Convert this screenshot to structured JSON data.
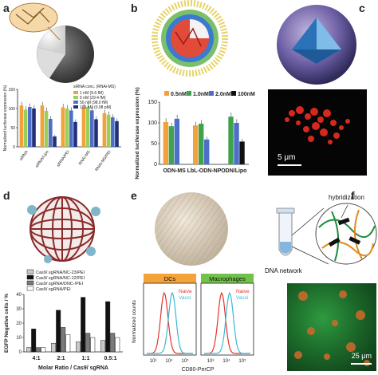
{
  "panel_labels": {
    "a": "a",
    "b": "b",
    "c": "c",
    "d": "d",
    "e": "e",
    "f": "f"
  },
  "colors": {
    "orange": "#f2a23a",
    "green": "#3fa34d",
    "blue": "#3f5fb5",
    "navy": "#22307a",
    "red": "#e8332a",
    "cyan": "#3ab7d9",
    "dc_header": "#f4a23a",
    "mac_header": "#72c24a"
  },
  "chart_data": [
    {
      "panel": "a",
      "type": "bar",
      "ylabel": "Normalized luciferase expression (%)",
      "ylim": [
        0,
        150
      ],
      "yticks": [
        0,
        50,
        100,
        150
      ],
      "legend_title": "siRNA conc. (RNAi-MS)",
      "categories": [
        "siRNA",
        "siRNA/Lipo",
        "siRNA/PEI",
        "RNAi-MS",
        "RNAi-MS/PEI"
      ],
      "series": [
        {
          "name": "1 nM (9.6 fM)",
          "color": "#f2a23a",
          "values": [
            108,
            108,
            103,
            103,
            88
          ]
        },
        {
          "name": "5 nM (29.4 fM)",
          "color": "#9bcf5a",
          "values": [
            97,
            94,
            100,
            104,
            84
          ]
        },
        {
          "name": "50 nM (98.0 fM)",
          "color": "#4e6fc8",
          "values": [
            104,
            73,
            95,
            95,
            77
          ]
        },
        {
          "name": "100 nM (0.98 pM)",
          "color": "#22307a",
          "values": [
            100,
            27,
            65,
            72,
            67
          ]
        }
      ]
    },
    {
      "panel": "b",
      "type": "bar",
      "ylabel": "Normalized luciferase expression (%)",
      "ylim": [
        0,
        150
      ],
      "yticks": [
        0,
        50,
        100,
        150
      ],
      "categories": [
        "ODN-MS",
        "LbL-ODN-NP",
        "ODN/Lipo"
      ],
      "series": [
        {
          "name": "0.5nM",
          "color": "#f2a23a",
          "values": [
            102,
            94,
            null
          ]
        },
        {
          "name": "1.0nM",
          "color": "#3fa34d",
          "values": [
            92,
            98,
            115
          ]
        },
        {
          "name": "2.0nM",
          "color": "#4e6fc8",
          "values": [
            110,
            60,
            100
          ]
        },
        {
          "name": "100nM",
          "color": "#111111",
          "values": [
            null,
            null,
            55
          ]
        }
      ]
    },
    {
      "panel": "d",
      "type": "bar",
      "ylabel": "EGFP Negative cells / %",
      "xlabel": "Molar Ratio / Cas9/ sgRNA",
      "ylim": [
        0,
        40
      ],
      "yticks": [
        0,
        10,
        20,
        30,
        40
      ],
      "categories": [
        "4:1",
        "2:1",
        "1:1",
        "0.5:1"
      ],
      "series": [
        {
          "name": "Cas9/ sgRNA/NC-23/PEI",
          "color": "#c9c9c9",
          "values": [
            3,
            6,
            7,
            8
          ]
        },
        {
          "name": "Cas9/ sgRNA/NC-12/PEI",
          "color": "#111111",
          "values": [
            16,
            29,
            38,
            35
          ]
        },
        {
          "name": "Cas9/ sgRNA/DNC-/PEI",
          "color": "#7a7a7a",
          "values": [
            3,
            17,
            13,
            13
          ]
        },
        {
          "name": "Cas9/ sgRNA/PEI",
          "color": "#ffffff",
          "values": [
            3,
            12,
            10,
            10
          ]
        }
      ]
    },
    {
      "panel": "e",
      "type": "line",
      "ylabel": "Normalized counts",
      "xlabel": "CD80-PerCP",
      "xscale": "log",
      "xticks": [
        "10³",
        "10⁴",
        "10⁵"
      ],
      "facets": [
        "DCs",
        "Macrophages"
      ],
      "series": [
        {
          "name": "Naive",
          "color": "#e8332a"
        },
        {
          "name": "Vacci",
          "color": "#3ab7d9"
        }
      ]
    }
  ],
  "panel_b_unit": "nM",
  "panel_c": {
    "scale_bar": "5 μm"
  },
  "panel_f": {
    "hybridization": "hybridization",
    "network": "DNA network",
    "scale_bar": "25 μm"
  }
}
